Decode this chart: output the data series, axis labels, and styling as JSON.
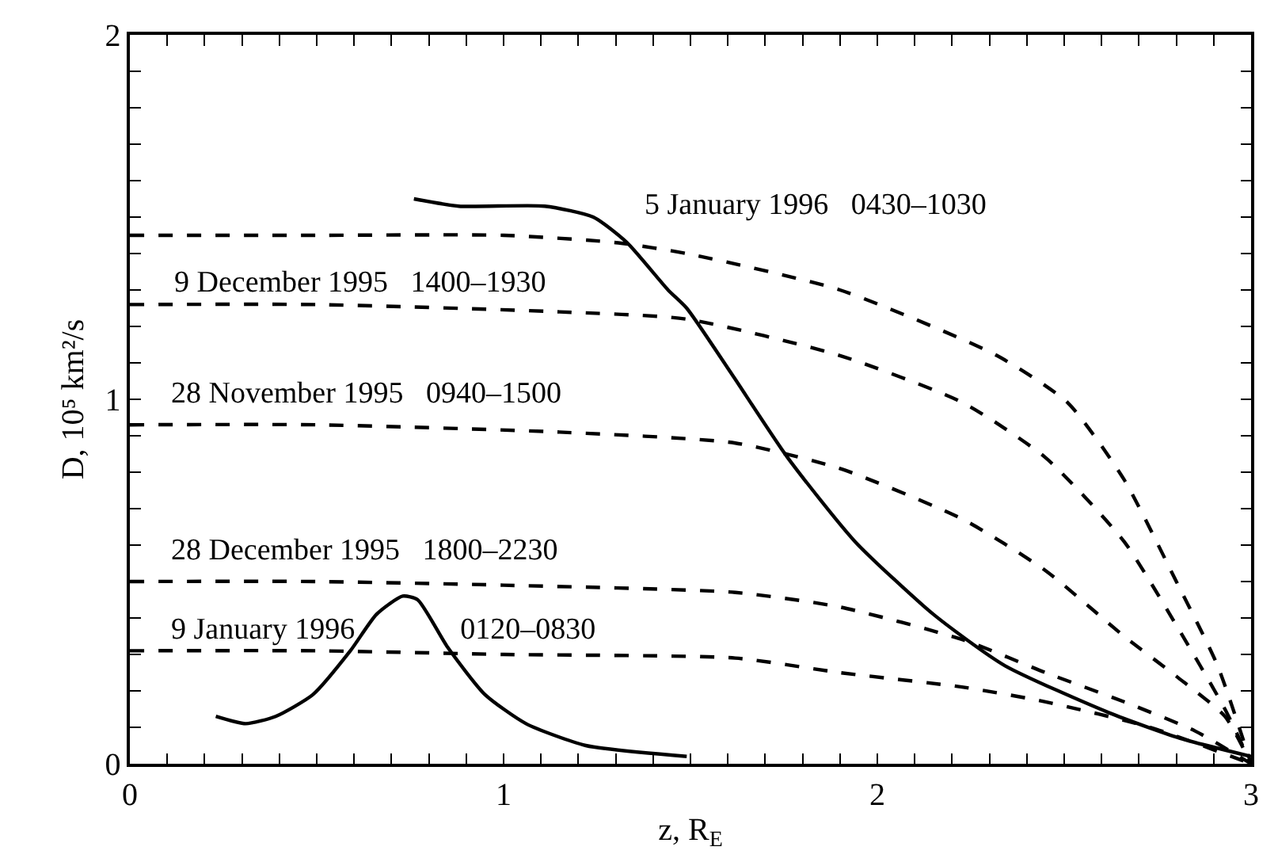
{
  "chart_data": {
    "type": "line",
    "xlabel": "z, R$_{E}$",
    "ylabel": "D, 10⁵ km²/s",
    "xlim": [
      0,
      3
    ],
    "ylim": [
      0,
      2
    ],
    "xticks": [
      0,
      {
        "value": 0.1,
        "label": null
      },
      {
        "value": 0.2,
        "label": null
      },
      {
        "value": 0.3,
        "label": null
      },
      {
        "value": 0.4,
        "label": null
      },
      {
        "value": 0.5,
        "label": null
      },
      {
        "value": 0.6,
        "label": null
      },
      {
        "value": 0.7,
        "label": null
      },
      {
        "value": 0.8,
        "label": null
      },
      {
        "value": 0.9,
        "label": null
      },
      1,
      {
        "value": 1.1,
        "label": null
      },
      {
        "value": 1.2,
        "label": null
      },
      {
        "value": 1.3,
        "label": null
      },
      {
        "value": 1.4,
        "label": null
      },
      {
        "value": 1.5,
        "label": null
      },
      {
        "value": 1.6,
        "label": null
      },
      {
        "value": 1.7,
        "label": null
      },
      {
        "value": 1.8,
        "label": null
      },
      {
        "value": 1.9,
        "label": null
      },
      2,
      {
        "value": 2.1,
        "label": null
      },
      {
        "value": 2.2,
        "label": null
      },
      {
        "value": 2.3,
        "label": null
      },
      {
        "value": 2.4,
        "label": null
      },
      {
        "value": 2.5,
        "label": null
      },
      {
        "value": 2.6,
        "label": null
      },
      {
        "value": 2.7,
        "label": null
      },
      {
        "value": 2.8,
        "label": null
      },
      {
        "value": 2.9,
        "label": null
      },
      3
    ],
    "yticks": [
      0,
      {
        "value": 0.1,
        "label": null
      },
      {
        "value": 0.2,
        "label": null
      },
      {
        "value": 0.3,
        "label": null
      },
      {
        "value": 0.4,
        "label": null
      },
      {
        "value": 0.5,
        "label": null
      },
      {
        "value": 0.6,
        "label": null
      },
      {
        "value": 0.7,
        "label": null
      },
      {
        "value": 0.8,
        "label": null
      },
      {
        "value": 0.9,
        "label": null
      },
      1,
      {
        "value": 1.1,
        "label": null
      },
      {
        "value": 1.2,
        "label": null
      },
      {
        "value": 1.3,
        "label": null
      },
      {
        "value": 1.4,
        "label": null
      },
      {
        "value": 1.5,
        "label": null
      },
      {
        "value": 1.6,
        "label": null
      },
      {
        "value": 1.7,
        "label": null
      },
      {
        "value": 1.8,
        "label": null
      },
      {
        "value": 1.9,
        "label": null
      },
      2
    ],
    "legend": false,
    "marker": "none",
    "series": [
      {
        "name": "5 January 1996   0430–1030",
        "color": "#000000",
        "line_style": "dashed",
        "x": [
          0,
          0.5,
          1.0,
          1.3,
          1.49,
          1.9,
          2.32,
          2.51,
          2.66,
          2.8,
          2.91,
          3
        ],
        "values": [
          1.45,
          1.45,
          1.45,
          1.43,
          1.4,
          1.3,
          1.12,
          0.99,
          0.78,
          0.5,
          0.27,
          0
        ]
      },
      {
        "name": "9 December 1995   1400–1930",
        "color": "#000000",
        "line_style": "dashed",
        "x": [
          0,
          0.5,
          1.15,
          1.49,
          1.9,
          2.23,
          2.45,
          2.66,
          2.8,
          2.93,
          3
        ],
        "values": [
          1.26,
          1.26,
          1.24,
          1.22,
          1.12,
          0.99,
          0.84,
          0.61,
          0.38,
          0.15,
          0
        ]
      },
      {
        "name": "28 November 1995   0940–1500",
        "color": "#000000",
        "line_style": "dashed",
        "x": [
          0,
          0.5,
          1.15,
          1.62,
          1.9,
          2.23,
          2.45,
          2.66,
          2.8,
          2.93,
          3
        ],
        "values": [
          0.93,
          0.93,
          0.91,
          0.88,
          0.81,
          0.67,
          0.53,
          0.35,
          0.24,
          0.13,
          0
        ]
      },
      {
        "name": "28 December 1995   1800–2230",
        "color": "#000000",
        "line_style": "dashed",
        "x": [
          0,
          0.5,
          1.0,
          1.62,
          1.9,
          2.23,
          2.45,
          2.66,
          2.85,
          3
        ],
        "values": [
          0.5,
          0.5,
          0.49,
          0.47,
          0.43,
          0.34,
          0.25,
          0.17,
          0.09,
          0
        ]
      },
      {
        "name": "9 January 1996   0120–0830",
        "color": "#000000",
        "line_style": "dashed",
        "x": [
          0,
          0.5,
          1.0,
          1.62,
          1.9,
          2.23,
          2.45,
          2.73,
          3
        ],
        "values": [
          0.31,
          0.31,
          0.3,
          0.29,
          0.25,
          0.21,
          0.17,
          0.1,
          0
        ]
      },
      {
        "color": "#000000",
        "line_style": "solid",
        "x": [
          0.23,
          0.31,
          0.39,
          0.49,
          0.59,
          0.66,
          0.73,
          0.77,
          0.85,
          0.95,
          1.06,
          1.22,
          1.49
        ],
        "values": [
          0.13,
          0.11,
          0.13,
          0.19,
          0.31,
          0.41,
          0.46,
          0.45,
          0.32,
          0.19,
          0.11,
          0.05,
          0.02
        ]
      },
      {
        "color": "#000000",
        "line_style": "solid",
        "x": [
          0.76,
          0.88,
          1.11,
          1.24,
          1.33,
          1.44,
          1.49,
          1.61,
          1.76,
          1.94,
          2.15,
          2.34,
          2.62,
          2.81,
          3.0
        ],
        "values": [
          1.55,
          1.53,
          1.53,
          1.5,
          1.43,
          1.3,
          1.25,
          1.07,
          0.84,
          0.61,
          0.41,
          0.27,
          0.14,
          0.07,
          0.02
        ]
      }
    ]
  }
}
